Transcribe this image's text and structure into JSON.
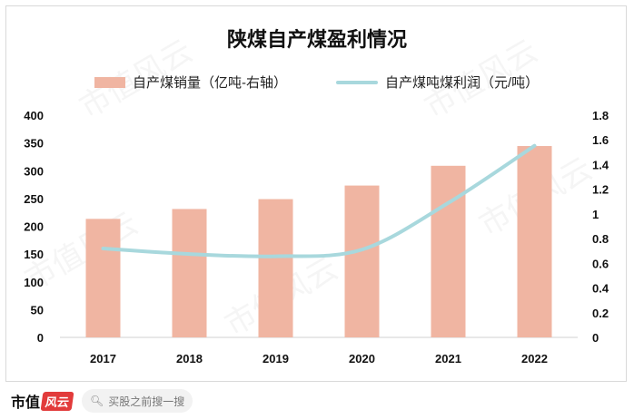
{
  "title": "陕煤自产煤盈利情况",
  "legend": {
    "bar_label": "自产煤销量（亿吨-右轴）",
    "line_label": "自产煤吨煤利润（元/吨）"
  },
  "footer": {
    "brand_text": "市值",
    "brand_mark": "风云",
    "search_placeholder": "买股之前搜一搜"
  },
  "watermark_text": "市值风云",
  "colors": {
    "bar": "#f0b5a2",
    "line": "#a8d8dd"
  },
  "chart_data": {
    "type": "bar",
    "title": "陕煤自产煤盈利情况",
    "categories": [
      "2017",
      "2018",
      "2019",
      "2020",
      "2021",
      "2022"
    ],
    "series": [
      {
        "name": "自产煤销量（亿吨-右轴）",
        "type": "bar",
        "axis": "right",
        "values": [
          0.96,
          1.04,
          1.12,
          1.23,
          1.39,
          1.55
        ]
      },
      {
        "name": "自产煤吨煤利润（元/吨）",
        "type": "line",
        "axis": "left",
        "values": [
          160,
          150,
          146,
          158,
          242,
          345
        ]
      }
    ],
    "left_axis": {
      "ylim": [
        0,
        400
      ],
      "ticks": [
        "0",
        "50",
        "100",
        "150",
        "200",
        "250",
        "300",
        "350",
        "400"
      ]
    },
    "right_axis": {
      "ylim": [
        0,
        1.8
      ],
      "ticks": [
        "0",
        "0.2",
        "0.4",
        "0.6",
        "0.8",
        "1",
        "1.2",
        "1.4",
        "1.6",
        "1.8"
      ]
    },
    "grid": false,
    "legend_position": "top"
  }
}
